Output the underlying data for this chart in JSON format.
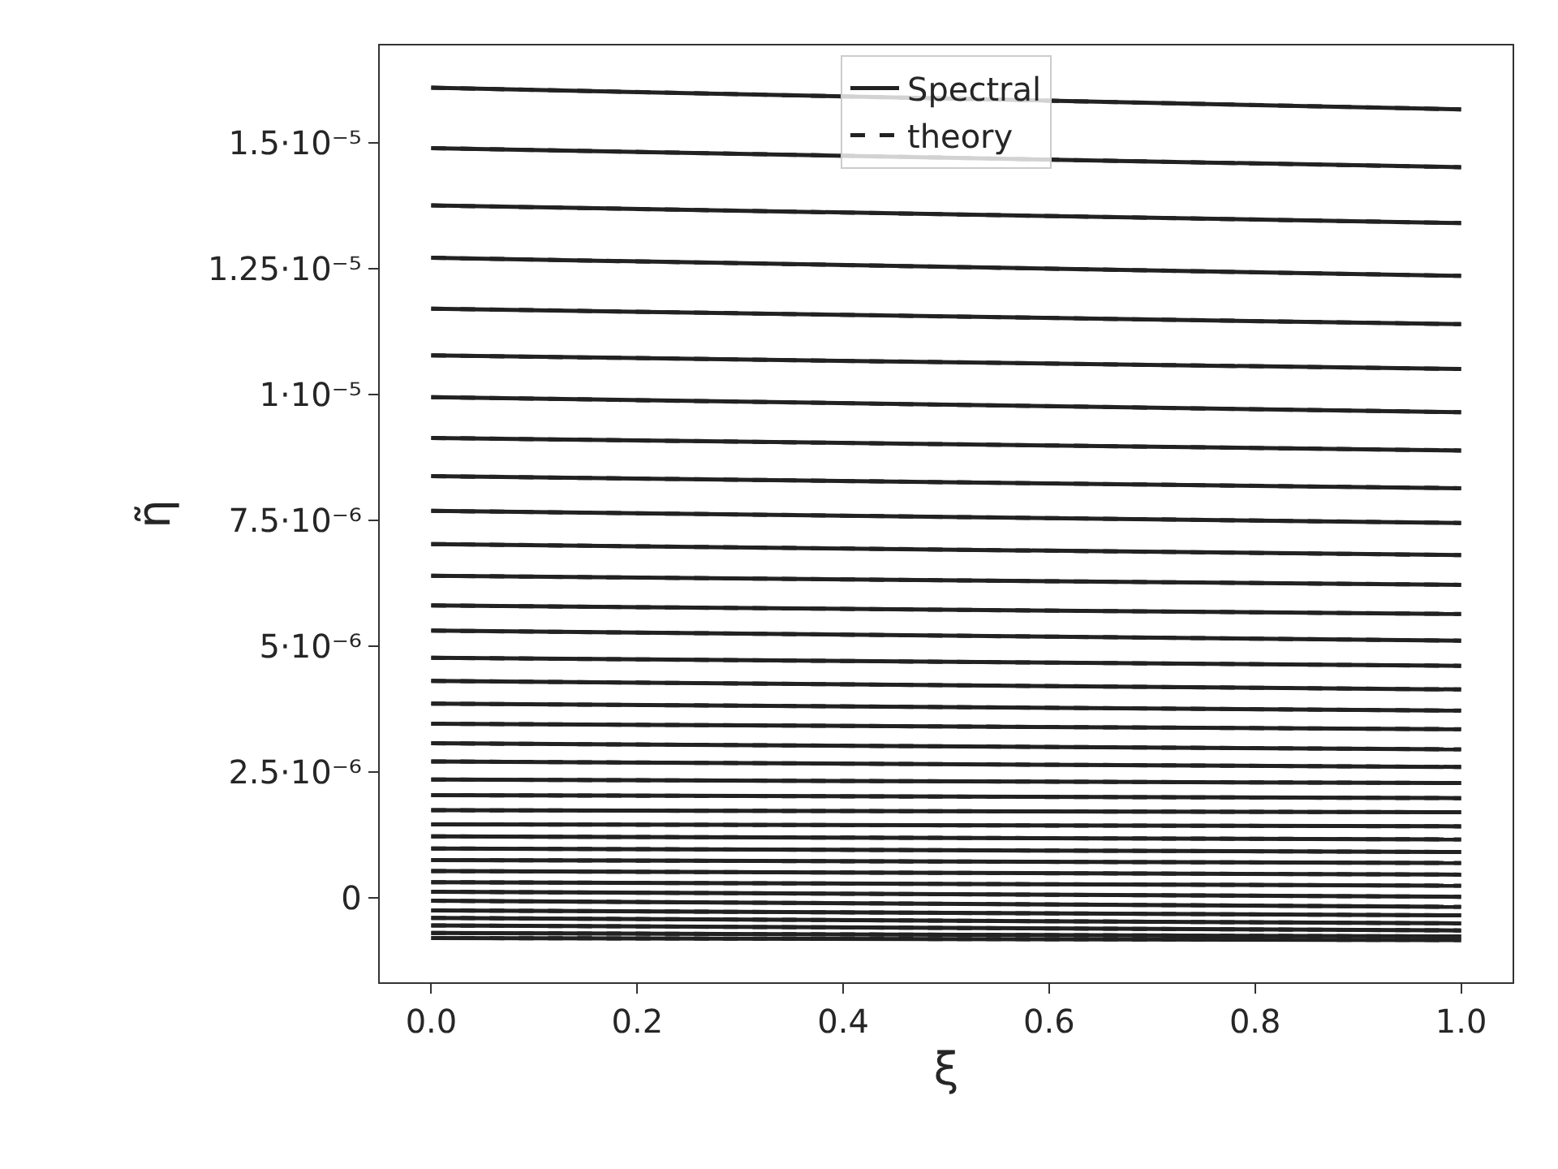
{
  "chart_data": {
    "type": "line",
    "xlabel": "ξ",
    "ylabel": "η̃",
    "x": [
      0,
      1
    ],
    "xlim": [
      -0.05,
      1.05
    ],
    "xticks": [
      {
        "value": 0,
        "label": "0.0"
      },
      0.2,
      0.4,
      0.6,
      0.8,
      {
        "value": 1,
        "label": "1.0"
      }
    ],
    "ylim": [
      -1.68e-06,
      1.694e-05
    ],
    "yticks": [
      0,
      {
        "value": 2.5e-06,
        "label": "2.5·10⁻⁶"
      },
      {
        "value": 5e-06,
        "label": "5·10⁻⁶"
      },
      {
        "value": 7.5e-06,
        "label": "7.5·10⁻⁶"
      },
      {
        "value": 1e-05,
        "label": "1·10⁻⁵"
      },
      {
        "value": 1.25e-05,
        "label": "1.25·10⁻⁵"
      },
      {
        "value": 1.5e-05,
        "label": "1.5·10⁻⁵"
      }
    ],
    "grid": false,
    "legend": "top",
    "marker": "none",
    "series": [
      {
        "name": "Spectral",
        "color": "#222222",
        "line_style": "solid",
        "values": [
          1.61e-05,
          1.567e-05
        ]
      },
      {
        "name": "theory",
        "color": "#222222",
        "line_style": "dashed",
        "values": [
          1.61e-05,
          1.567e-05
        ]
      },
      {
        "color": "#222222",
        "line_style": "solid",
        "values": [
          1.49e-05,
          1.452e-05
        ]
      },
      {
        "color": "#222222",
        "line_style": "dashed",
        "values": [
          1.49e-05,
          1.452e-05
        ]
      },
      {
        "color": "#222222",
        "line_style": "solid",
        "values": [
          1.376e-05,
          1.341e-05
        ]
      },
      {
        "color": "#222222",
        "line_style": "dashed",
        "values": [
          1.376e-05,
          1.341e-05
        ]
      },
      {
        "color": "#222222",
        "line_style": "solid",
        "values": [
          1.272e-05,
          1.236e-05
        ]
      },
      {
        "color": "#222222",
        "line_style": "dashed",
        "values": [
          1.272e-05,
          1.236e-05
        ]
      },
      {
        "color": "#222222",
        "line_style": "solid",
        "values": [
          1.171e-05,
          1.14e-05
        ]
      },
      {
        "color": "#222222",
        "line_style": "dashed",
        "values": [
          1.171e-05,
          1.14e-05
        ]
      },
      {
        "color": "#222222",
        "line_style": "solid",
        "values": [
          1.078e-05,
          1.051e-05
        ]
      },
      {
        "color": "#222222",
        "line_style": "dashed",
        "values": [
          1.078e-05,
          1.051e-05
        ]
      },
      {
        "color": "#222222",
        "line_style": "solid",
        "values": [
          9.95e-06,
          9.65e-06
        ]
      },
      {
        "color": "#222222",
        "line_style": "dashed",
        "values": [
          9.95e-06,
          9.65e-06
        ]
      },
      {
        "color": "#222222",
        "line_style": "solid",
        "values": [
          9.14e-06,
          8.89e-06
        ]
      },
      {
        "color": "#222222",
        "line_style": "dashed",
        "values": [
          9.14e-06,
          8.89e-06
        ]
      },
      {
        "color": "#222222",
        "line_style": "solid",
        "values": [
          8.38e-06,
          8.14e-06
        ]
      },
      {
        "color": "#222222",
        "line_style": "dashed",
        "values": [
          8.38e-06,
          8.14e-06
        ]
      },
      {
        "color": "#222222",
        "line_style": "solid",
        "values": [
          7.69e-06,
          7.45e-06
        ]
      },
      {
        "color": "#222222",
        "line_style": "dashed",
        "values": [
          7.69e-06,
          7.45e-06
        ]
      },
      {
        "color": "#222222",
        "line_style": "solid",
        "values": [
          7.03e-06,
          6.81e-06
        ]
      },
      {
        "color": "#222222",
        "line_style": "dashed",
        "values": [
          7.03e-06,
          6.81e-06
        ]
      },
      {
        "color": "#222222",
        "line_style": "solid",
        "values": [
          6.4e-06,
          6.22e-06
        ]
      },
      {
        "color": "#222222",
        "line_style": "dashed",
        "values": [
          6.4e-06,
          6.22e-06
        ]
      },
      {
        "color": "#222222",
        "line_style": "solid",
        "values": [
          5.81e-06,
          5.64e-06
        ]
      },
      {
        "color": "#222222",
        "line_style": "dashed",
        "values": [
          5.81e-06,
          5.64e-06
        ]
      },
      {
        "color": "#222222",
        "line_style": "solid",
        "values": [
          5.31e-06,
          5.11e-06
        ]
      },
      {
        "color": "#222222",
        "line_style": "dashed",
        "values": [
          5.31e-06,
          5.11e-06
        ]
      },
      {
        "color": "#222222",
        "line_style": "solid",
        "values": [
          4.77e-06,
          4.61e-06
        ]
      },
      {
        "color": "#222222",
        "line_style": "dashed",
        "values": [
          4.77e-06,
          4.61e-06
        ]
      },
      {
        "color": "#222222",
        "line_style": "solid",
        "values": [
          4.31e-06,
          4.14e-06
        ]
      },
      {
        "color": "#222222",
        "line_style": "dashed",
        "values": [
          4.31e-06,
          4.14e-06
        ]
      },
      {
        "color": "#222222",
        "line_style": "solid",
        "values": [
          3.86e-06,
          3.72e-06
        ]
      },
      {
        "color": "#222222",
        "line_style": "dashed",
        "values": [
          3.86e-06,
          3.72e-06
        ]
      },
      {
        "color": "#222222",
        "line_style": "solid",
        "values": [
          3.46e-06,
          3.35e-06
        ]
      },
      {
        "color": "#222222",
        "line_style": "dashed",
        "values": [
          3.46e-06,
          3.35e-06
        ]
      },
      {
        "color": "#222222",
        "line_style": "solid",
        "values": [
          3.07e-06,
          2.95e-06
        ]
      },
      {
        "color": "#222222",
        "line_style": "dashed",
        "values": [
          3.07e-06,
          2.95e-06
        ]
      },
      {
        "color": "#222222",
        "line_style": "solid",
        "values": [
          2.71e-06,
          2.6e-06
        ]
      },
      {
        "color": "#222222",
        "line_style": "dashed",
        "values": [
          2.71e-06,
          2.6e-06
        ]
      },
      {
        "color": "#222222",
        "line_style": "solid",
        "values": [
          2.35e-06,
          2.28e-06
        ]
      },
      {
        "color": "#222222",
        "line_style": "dashed",
        "values": [
          2.35e-06,
          2.28e-06
        ]
      },
      {
        "color": "#222222",
        "line_style": "solid",
        "values": [
          2.04e-06,
          1.98e-06
        ]
      },
      {
        "color": "#222222",
        "line_style": "dashed",
        "values": [
          2.04e-06,
          1.98e-06
        ]
      },
      {
        "color": "#222222",
        "line_style": "solid",
        "values": [
          1.74e-06,
          1.7e-06
        ]
      },
      {
        "color": "#222222",
        "line_style": "dashed",
        "values": [
          1.74e-06,
          1.7e-06
        ]
      },
      {
        "color": "#222222",
        "line_style": "solid",
        "values": [
          1.46e-06,
          1.42e-06
        ]
      },
      {
        "color": "#222222",
        "line_style": "dashed",
        "values": [
          1.46e-06,
          1.42e-06
        ]
      },
      {
        "color": "#222222",
        "line_style": "solid",
        "values": [
          1.22e-06,
          1.16e-06
        ]
      },
      {
        "color": "#222222",
        "line_style": "dashed",
        "values": [
          1.22e-06,
          1.16e-06
        ]
      },
      {
        "color": "#222222",
        "line_style": "solid",
        "values": [
          9.8e-07,
          9.1e-07
        ]
      },
      {
        "color": "#222222",
        "line_style": "dashed",
        "values": [
          9.8e-07,
          9.1e-07
        ]
      },
      {
        "color": "#222222",
        "line_style": "solid",
        "values": [
          7.5e-07,
          6.9e-07
        ]
      },
      {
        "color": "#222222",
        "line_style": "dashed",
        "values": [
          7.5e-07,
          6.9e-07
        ]
      },
      {
        "color": "#222222",
        "line_style": "solid",
        "values": [
          5.3e-07,
          4.6e-07
        ]
      },
      {
        "color": "#222222",
        "line_style": "dashed",
        "values": [
          5.3e-07,
          4.6e-07
        ]
      },
      {
        "color": "#222222",
        "line_style": "solid",
        "values": [
          3.1e-07,
          2.4e-07
        ]
      },
      {
        "color": "#222222",
        "line_style": "dashed",
        "values": [
          3.1e-07,
          2.4e-07
        ]
      },
      {
        "color": "#222222",
        "line_style": "solid",
        "values": [
          1.2e-07,
          2e-08
        ]
      },
      {
        "color": "#222222",
        "line_style": "dashed",
        "values": [
          1.2e-07,
          2e-08
        ]
      },
      {
        "color": "#222222",
        "line_style": "solid",
        "values": [
          -6e-08,
          -1.8e-07
        ]
      },
      {
        "color": "#222222",
        "line_style": "dashed",
        "values": [
          -6e-08,
          -1.8e-07
        ]
      },
      {
        "color": "#222222",
        "line_style": "solid",
        "values": [
          -2.5e-07,
          -3.5e-07
        ]
      },
      {
        "color": "#222222",
        "line_style": "dashed",
        "values": [
          -2.5e-07,
          -3.5e-07
        ]
      },
      {
        "color": "#222222",
        "line_style": "solid",
        "values": [
          -4e-07,
          -5.1e-07
        ]
      },
      {
        "color": "#222222",
        "line_style": "dashed",
        "values": [
          -4e-07,
          -5.1e-07
        ]
      },
      {
        "color": "#222222",
        "line_style": "solid",
        "values": [
          -5.5e-07,
          -6.5e-07
        ]
      },
      {
        "color": "#222222",
        "line_style": "dashed",
        "values": [
          -5.5e-07,
          -6.5e-07
        ]
      },
      {
        "color": "#222222",
        "line_style": "solid",
        "values": [
          -7e-07,
          -7.7e-07
        ]
      },
      {
        "color": "#222222",
        "line_style": "dashed",
        "values": [
          -7e-07,
          -7.7e-07
        ]
      },
      {
        "color": "#222222",
        "line_style": "solid",
        "values": [
          -8e-07,
          -8.4e-07
        ]
      },
      {
        "color": "#222222",
        "line_style": "dashed",
        "values": [
          -8e-07,
          -8.4e-07
        ]
      }
    ]
  }
}
